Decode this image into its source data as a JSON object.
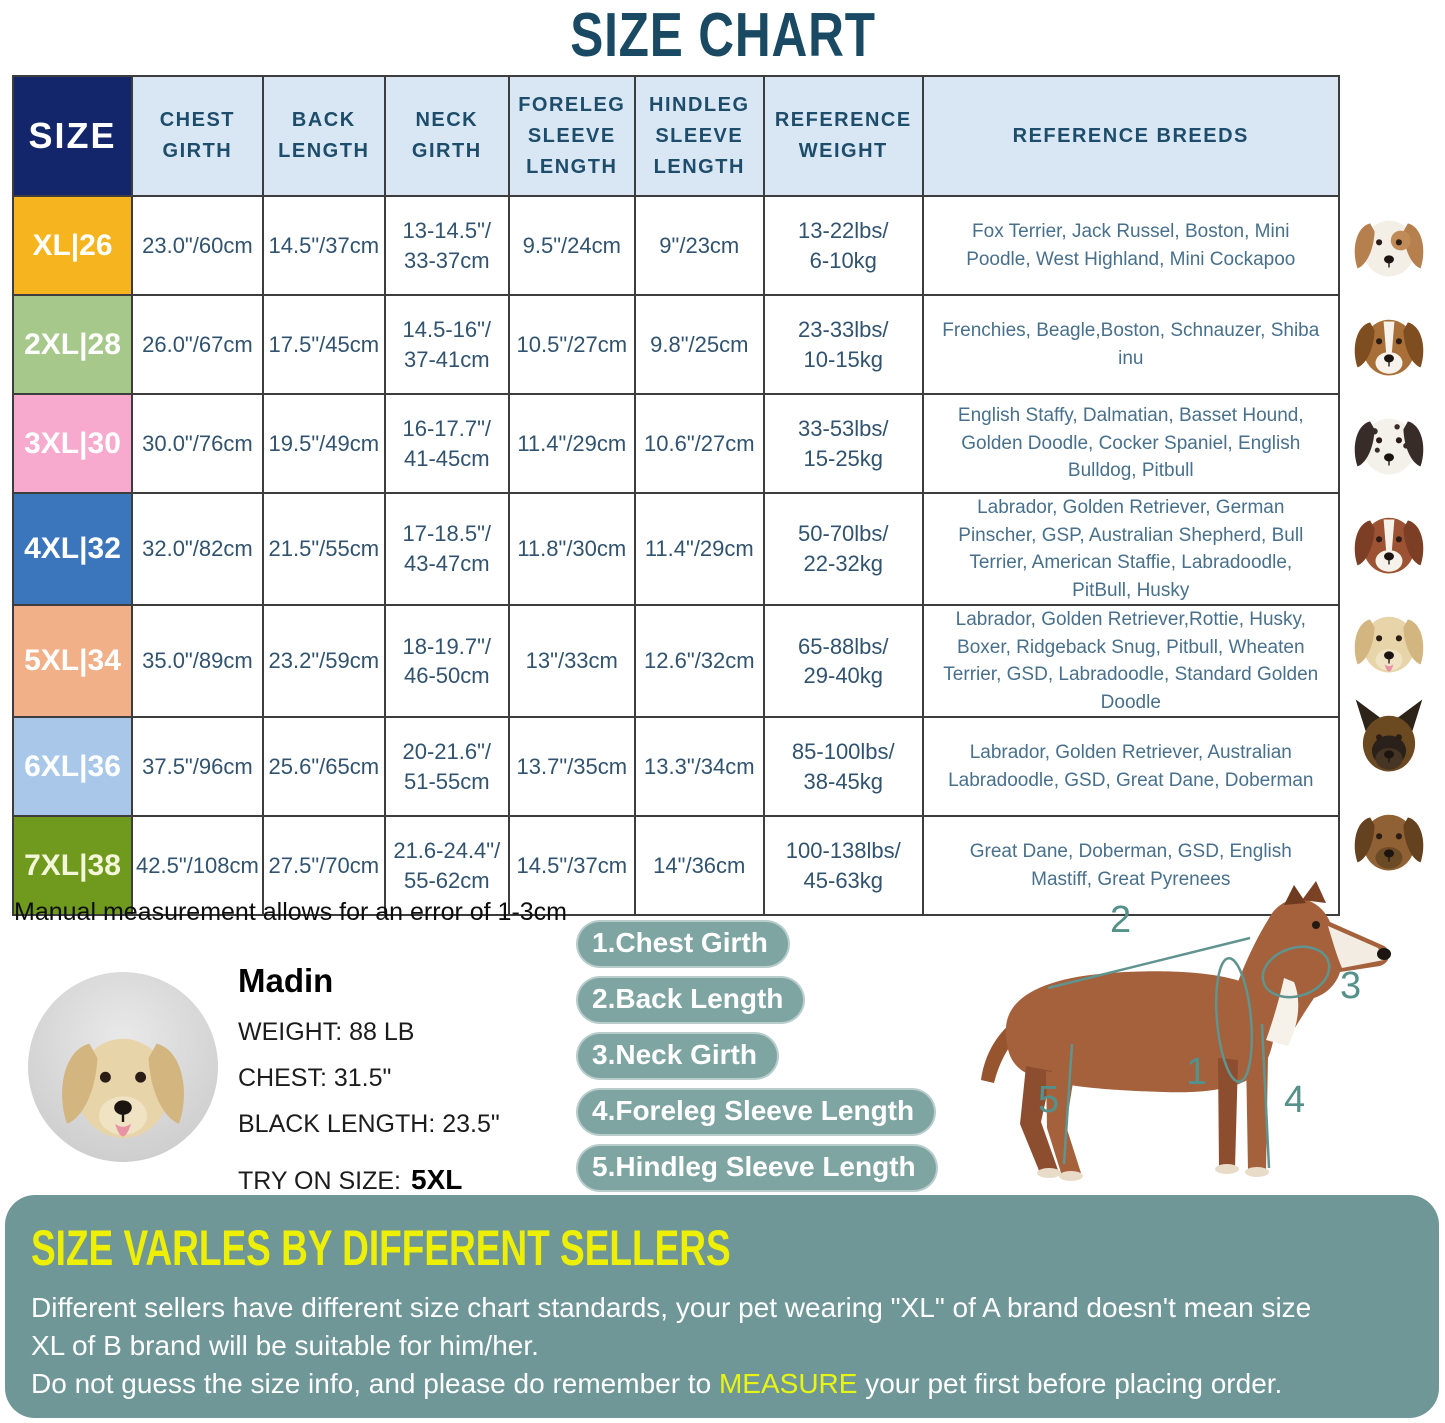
{
  "page_title": "SIZE CHART",
  "note": "Manual measurement allows for an error of 1-3cm",
  "table": {
    "headers": [
      "SIZE",
      "CHEST\nGIRTH",
      "BACK\nLENGTH",
      "NECK\nGIRTH",
      "FORELEG\nSLEEVE\nLENGTH",
      "HINDLEG\nSLEEVE\nLENGTH",
      "REFERENCE\nWEIGHT",
      "REFERENCE BREEDS"
    ],
    "rows": [
      {
        "size": "XL|26",
        "color": "#F6B41E",
        "label_color": "#FFFFFF",
        "chest": "23.0\"/60cm",
        "back": "14.5\"/37cm",
        "neck": "13-14.5\"/\n33-37cm",
        "foreleg": "9.5\"/24cm",
        "hindleg": "9\"/23cm",
        "weight": "13-22lbs/\n6-10kg",
        "breeds": "Fox Terrier, Jack Russel, Boston, Mini Poodle, West Highland, Mini Cockapoo",
        "dog": "jack-russell"
      },
      {
        "size": "2XL|28",
        "color": "#A6C98B",
        "label_color": "#FFFFFF",
        "chest": "26.0\"/67cm",
        "back": "17.5\"/45cm",
        "neck": "14.5-16\"/\n37-41cm",
        "foreleg": "10.5\"/27cm",
        "hindleg": "9.8\"/25cm",
        "weight": "23-33lbs/\n10-15kg",
        "breeds": "Frenchies, Beagle,Boston, Schnauzer, Shiba inu",
        "dog": "beagle"
      },
      {
        "size": "3XL|30",
        "color": "#F8A9CE",
        "label_color": "#FFFFFF",
        "chest": "30.0\"/76cm",
        "back": "19.5\"/49cm",
        "neck": "16-17.7\"/\n41-45cm",
        "foreleg": "11.4\"/29cm",
        "hindleg": "10.6\"/27cm",
        "weight": "33-53lbs/\n15-25kg",
        "breeds": "English Staffy, Dalmatian, Basset Hound, Golden Doodle, Cocker Spaniel, English Bulldog, Pitbull",
        "dog": "dalmatian"
      },
      {
        "size": "4XL|32",
        "color": "#3B76BC",
        "label_color": "#FFFFFF",
        "chest": "32.0\"/82cm",
        "back": "21.5\"/55cm",
        "neck": "17-18.5\"/\n43-47cm",
        "foreleg": "11.8\"/30cm",
        "hindleg": "11.4\"/29cm",
        "weight": "50-70lbs/\n22-32kg",
        "breeds": "Labrador, Golden Retriever, German Pinscher, GSP, Australian Shepherd, Bull Terrier, American Staffie, Labradoodle, PitBull, Husky",
        "dog": "amstaff"
      },
      {
        "size": "5XL|34",
        "color": "#F1B088",
        "label_color": "#FFFFFF",
        "chest": "35.0\"/89cm",
        "back": "23.2\"/59cm",
        "neck": "18-19.7\"/\n46-50cm",
        "foreleg": "13\"/33cm",
        "hindleg": "12.6\"/32cm",
        "weight": "65-88lbs/\n29-40kg",
        "breeds": "Labrador, Golden Retriever,Rottie, Husky, Boxer, Ridgeback Snug, Pitbull, Wheaten Terrier, GSD, Labradoodle,  Standard Golden Doodle",
        "dog": "labrador"
      },
      {
        "size": "6XL|36",
        "color": "#A9C8E9",
        "label_color": "#FFFFFF",
        "chest": "37.5\"/96cm",
        "back": "25.6\"/65cm",
        "neck": "20-21.6\"/\n51-55cm",
        "foreleg": "13.7\"/35cm",
        "hindleg": "13.3\"/34cm",
        "weight": "85-100lbs/\n38-45kg",
        "breeds": "Labrador, Golden Retriever, Australian Labradoodle, GSD, Great Dane, Doberman",
        "dog": "german-shepherd"
      },
      {
        "size": "7XL|38",
        "color": "#6F9A1E",
        "label_color": "#F4F6DA",
        "chest": "42.5\"/108cm",
        "back": "27.5\"/70cm",
        "neck": "21.6-24.4\"/\n55-62cm",
        "foreleg": "14.5\"/37cm",
        "hindleg": "14\"/36cm",
        "weight": "100-138lbs/\n45-63kg",
        "breeds": "Great Dane, Doberman, GSD, English Mastiff, Great Pyrenees",
        "dog": "great-dane"
      }
    ]
  },
  "model": {
    "name": "Madin",
    "weight": "WEIGHT: 88 LB",
    "chest": "CHEST: 31.5\"",
    "back_length": "BLACK LENGTH: 23.5\"",
    "try_on_label": "TRY ON SIZE:",
    "try_on_size": "5XL"
  },
  "measure_labels": [
    "1.Chest Girth",
    "2.Back Length",
    "3.Neck Girth",
    "4.Foreleg Sleeve Length",
    "5.Hindleg Sleeve Length"
  ],
  "diagram": {
    "labels": [
      "1",
      "2",
      "3",
      "4",
      "5"
    ]
  },
  "footer": {
    "title": "SIZE VARLES BY DIFFERENT SELLERS",
    "line1": "Different sellers have different size chart standards, your pet wearing \"XL\" of A brand doesn't mean size",
    "line2": " XL of B brand will be suitable for him/her.",
    "line3_pre": "Do not guess the size info, and please do remember to ",
    "line3_highlight": "MEASURE",
    "line3_post": " your pet first before placing order."
  },
  "colors": {
    "title_teal": "#1A4A63",
    "header_navy": "#14266B",
    "header_blue": "#D9E7F4",
    "grid_line": "#3D3D3D",
    "pill_teal": "#7FA5A3",
    "footer_teal": "#6F9798",
    "highlight_yellow": "#EDF005",
    "diagram_teal": "#5F948F"
  }
}
